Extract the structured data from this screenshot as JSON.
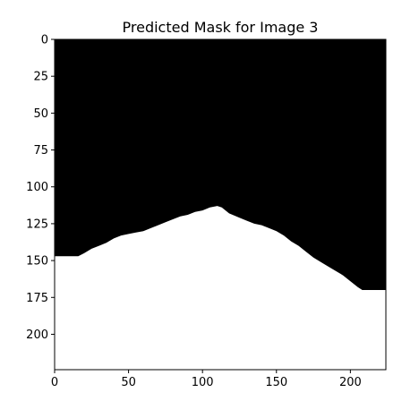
{
  "chart_data": {
    "type": "heatmap",
    "title": "Predicted Mask for Image 3",
    "xlabel": "",
    "ylabel": "",
    "xlim": [
      0,
      224
    ],
    "ylim": [
      224,
      0
    ],
    "x_ticks": [
      0,
      50,
      100,
      150,
      200
    ],
    "y_ticks": [
      0,
      25,
      50,
      75,
      100,
      125,
      150,
      175,
      200
    ],
    "grid": false,
    "colors": {
      "background": "#000000",
      "mask": "#ffffff"
    },
    "mask_boundary": {
      "description_of_values": "row (y) where white mask begins for each column (x); white below",
      "points": [
        [
          0,
          147
        ],
        [
          16,
          147
        ],
        [
          20,
          145
        ],
        [
          25,
          142
        ],
        [
          30,
          140
        ],
        [
          35,
          138
        ],
        [
          40,
          135
        ],
        [
          45,
          133
        ],
        [
          50,
          132
        ],
        [
          55,
          131
        ],
        [
          60,
          130
        ],
        [
          65,
          128
        ],
        [
          70,
          126
        ],
        [
          75,
          124
        ],
        [
          80,
          122
        ],
        [
          85,
          120
        ],
        [
          90,
          119
        ],
        [
          95,
          117
        ],
        [
          100,
          116
        ],
        [
          105,
          114
        ],
        [
          110,
          113
        ],
        [
          113,
          114
        ],
        [
          118,
          118
        ],
        [
          125,
          121
        ],
        [
          130,
          123
        ],
        [
          135,
          125
        ],
        [
          140,
          126
        ],
        [
          145,
          128
        ],
        [
          150,
          130
        ],
        [
          155,
          133
        ],
        [
          160,
          137
        ],
        [
          165,
          140
        ],
        [
          170,
          144
        ],
        [
          175,
          148
        ],
        [
          180,
          151
        ],
        [
          185,
          154
        ],
        [
          190,
          157
        ],
        [
          195,
          160
        ],
        [
          200,
          164
        ],
        [
          205,
          168
        ],
        [
          208,
          170
        ],
        [
          224,
          170
        ]
      ]
    }
  }
}
